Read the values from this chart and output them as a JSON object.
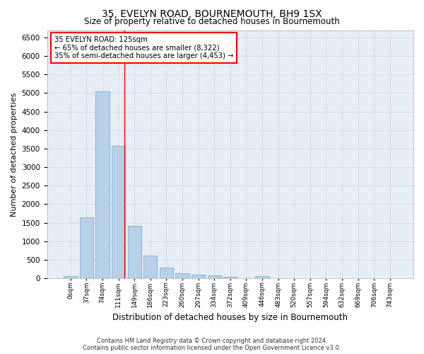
{
  "title": "35, EVELYN ROAD, BOURNEMOUTH, BH9 1SX",
  "subtitle": "Size of property relative to detached houses in Bournemouth",
  "xlabel": "Distribution of detached houses by size in Bournemouth",
  "ylabel": "Number of detached properties",
  "footer_line1": "Contains HM Land Registry data © Crown copyright and database right 2024.",
  "footer_line2": "Contains public sector information licensed under the Open Government Licence v3.0.",
  "bar_labels": [
    "0sqm",
    "37sqm",
    "74sqm",
    "111sqm",
    "149sqm",
    "186sqm",
    "223sqm",
    "260sqm",
    "297sqm",
    "334sqm",
    "372sqm",
    "409sqm",
    "446sqm",
    "483sqm",
    "520sqm",
    "557sqm",
    "594sqm",
    "632sqm",
    "669sqm",
    "706sqm",
    "743sqm"
  ],
  "bar_values": [
    65,
    1650,
    5050,
    3580,
    1410,
    610,
    290,
    140,
    95,
    70,
    50,
    0,
    55,
    0,
    0,
    0,
    0,
    0,
    0,
    0,
    0
  ],
  "bar_color": "#b8d0e8",
  "bar_edge_color": "#7aafd4",
  "grid_color": "#c8d4e0",
  "bg_color": "#e8eef5",
  "vline_x": 3.38,
  "vline_color": "red",
  "annotation_text": "35 EVELYN ROAD: 125sqm\n← 65% of detached houses are smaller (8,322)\n35% of semi-detached houses are larger (4,453) →",
  "annotation_box_color": "red",
  "ylim": [
    0,
    6700
  ],
  "yticks": [
    0,
    500,
    1000,
    1500,
    2000,
    2500,
    3000,
    3500,
    4000,
    4500,
    5000,
    5500,
    6000,
    6500
  ]
}
